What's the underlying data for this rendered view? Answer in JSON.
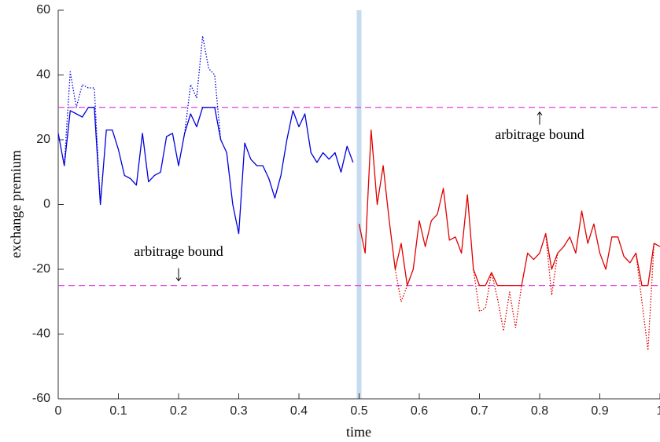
{
  "chart_data": {
    "type": "line",
    "xlabel": "time",
    "ylabel": "exchange premium",
    "xlim": [
      0,
      1
    ],
    "ylim": [
      -60,
      60
    ],
    "xticks": [
      0,
      0.1,
      0.2,
      0.3,
      0.4,
      0.5,
      0.6,
      0.7,
      0.8,
      0.9,
      1
    ],
    "yticks": [
      -60,
      -40,
      -20,
      0,
      20,
      40,
      60
    ],
    "grid": false,
    "vline": {
      "x": 0.5,
      "color": "#c6dbef"
    },
    "hlines": {
      "values": [
        30,
        -25
      ],
      "color": "#e040e0",
      "style": "dashed"
    },
    "annotations": [
      "arbitrage bound",
      "arbitrage bound"
    ],
    "series": [
      {
        "color": "#0000dd",
        "style": "dotted",
        "x": [
          0,
          0.01,
          0.02,
          0.03,
          0.04,
          0.05,
          0.06,
          0.07,
          0.08,
          0.09,
          0.1,
          0.11,
          0.12,
          0.13,
          0.14,
          0.15,
          0.16,
          0.17,
          0.18,
          0.19,
          0.2,
          0.21,
          0.22,
          0.23,
          0.24,
          0.25,
          0.26,
          0.27,
          0.28,
          0.29,
          0.3,
          0.31,
          0.32,
          0.33,
          0.34,
          0.35,
          0.36,
          0.37,
          0.38,
          0.39,
          0.4,
          0.41,
          0.42,
          0.43,
          0.44,
          0.45,
          0.46,
          0.47,
          0.48,
          0.49
        ],
        "values": [
          null,
          12,
          41,
          30,
          37,
          36,
          36,
          0,
          null,
          null,
          null,
          null,
          null,
          null,
          null,
          null,
          null,
          null,
          null,
          null,
          null,
          22,
          37,
          33,
          52,
          42,
          40,
          20,
          null,
          null,
          null,
          null,
          null,
          null,
          null,
          null,
          null,
          null,
          null,
          null,
          null,
          null,
          null,
          null,
          null,
          null,
          null,
          null,
          null,
          null
        ]
      },
      {
        "color": "#0000dd",
        "style": "solid",
        "x": [
          0,
          0.01,
          0.02,
          0.03,
          0.04,
          0.05,
          0.06,
          0.07,
          0.08,
          0.09,
          0.1,
          0.11,
          0.12,
          0.13,
          0.14,
          0.15,
          0.16,
          0.17,
          0.18,
          0.19,
          0.2,
          0.21,
          0.22,
          0.23,
          0.24,
          0.25,
          0.26,
          0.27,
          0.28,
          0.29,
          0.3,
          0.31,
          0.32,
          0.33,
          0.34,
          0.35,
          0.36,
          0.37,
          0.38,
          0.39,
          0.4,
          0.41,
          0.42,
          0.43,
          0.44,
          0.45,
          0.46,
          0.47,
          0.48,
          0.49
        ],
        "values": [
          22,
          12,
          29,
          28,
          27,
          30,
          30,
          0,
          23,
          23,
          17,
          9,
          8,
          6,
          22,
          7,
          9,
          10,
          21,
          22,
          12,
          22,
          28,
          24,
          30,
          30,
          30,
          20,
          16,
          0,
          -9,
          19,
          14,
          12,
          12,
          8,
          2,
          9,
          20,
          29,
          24,
          28,
          16,
          13,
          16,
          14,
          16,
          10,
          18,
          13
        ]
      },
      {
        "color": "#e00000",
        "style": "dotted",
        "x": [
          0.5,
          0.51,
          0.52,
          0.53,
          0.54,
          0.55,
          0.56,
          0.57,
          0.58,
          0.59,
          0.6,
          0.61,
          0.62,
          0.63,
          0.64,
          0.65,
          0.66,
          0.67,
          0.68,
          0.69,
          0.7,
          0.71,
          0.72,
          0.73,
          0.74,
          0.75,
          0.76,
          0.77,
          0.78,
          0.79,
          0.8,
          0.81,
          0.82,
          0.83,
          0.84,
          0.85,
          0.86,
          0.87,
          0.88,
          0.89,
          0.9,
          0.91,
          0.92,
          0.93,
          0.94,
          0.95,
          0.96,
          0.97,
          0.98,
          0.99,
          1
        ],
        "values": [
          null,
          null,
          null,
          null,
          null,
          null,
          -20,
          -30,
          -25,
          null,
          null,
          null,
          null,
          null,
          null,
          null,
          null,
          null,
          null,
          -20,
          -33,
          -32,
          -21,
          -29,
          -39,
          -27,
          -38,
          -25,
          null,
          null,
          null,
          -9,
          -28,
          -15,
          null,
          null,
          null,
          null,
          null,
          null,
          null,
          null,
          null,
          null,
          null,
          null,
          -15,
          -30,
          -45,
          -12,
          null
        ]
      },
      {
        "color": "#e00000",
        "style": "solid",
        "x": [
          0.5,
          0.51,
          0.52,
          0.53,
          0.54,
          0.55,
          0.56,
          0.57,
          0.58,
          0.59,
          0.6,
          0.61,
          0.62,
          0.63,
          0.64,
          0.65,
          0.66,
          0.67,
          0.68,
          0.69,
          0.7,
          0.71,
          0.72,
          0.73,
          0.74,
          0.75,
          0.76,
          0.77,
          0.78,
          0.79,
          0.8,
          0.81,
          0.82,
          0.83,
          0.84,
          0.85,
          0.86,
          0.87,
          0.88,
          0.89,
          0.9,
          0.91,
          0.92,
          0.93,
          0.94,
          0.95,
          0.96,
          0.97,
          0.98,
          0.99,
          1
        ],
        "values": [
          -6,
          -15,
          23,
          0,
          12,
          -5,
          -20,
          -12,
          -25,
          -20,
          -5,
          -13,
          -5,
          -3,
          5,
          -11,
          -10,
          -15,
          3,
          -20,
          -25,
          -25,
          -21,
          -25,
          -25,
          -25,
          -25,
          -25,
          -15,
          -17,
          -15,
          -9,
          -20,
          -15,
          -13,
          -10,
          -15,
          -2,
          -12,
          -6,
          -15,
          -20,
          -10,
          -10,
          -16,
          -18,
          -15,
          -25,
          -25,
          -12,
          -13
        ]
      }
    ]
  }
}
